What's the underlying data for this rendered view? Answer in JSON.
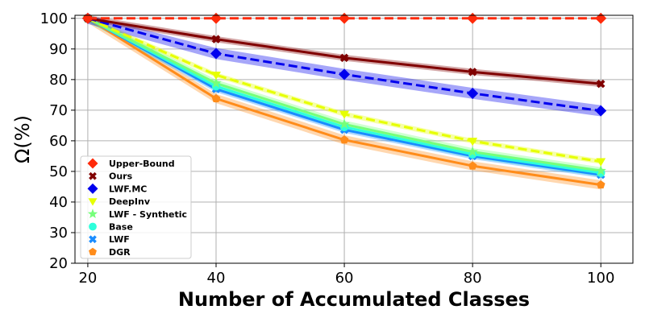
{
  "chart_data": {
    "type": "line",
    "xlabel": "Number of Accumulated Classes",
    "ylabel": "Ω(%)",
    "x": [
      20,
      40,
      60,
      80,
      100
    ],
    "xticks": [
      20,
      40,
      60,
      80,
      100
    ],
    "yticks": [
      20,
      30,
      40,
      50,
      60,
      70,
      80,
      90,
      100
    ],
    "xlim": [
      18,
      105
    ],
    "ylim": [
      20,
      101
    ],
    "grid": true,
    "legend_position": "lower-left",
    "series": [
      {
        "name": "Upper-Bound",
        "values": [
          100,
          100,
          100,
          100,
          100
        ],
        "color": "#ff2a0a",
        "dash": true,
        "marker": "diamond",
        "band": 0
      },
      {
        "name": "Ours",
        "values": [
          100,
          93.2,
          87.1,
          82.5,
          78.6
        ],
        "color": "#800000",
        "dash": false,
        "marker": "x",
        "band": 1.0
      },
      {
        "name": "LWF.MC",
        "values": [
          100,
          88.5,
          81.7,
          75.5,
          69.8
        ],
        "color": "#0000ee",
        "dash": true,
        "marker": "diamond",
        "band": 1.8
      },
      {
        "name": "DeepInv",
        "values": [
          100,
          81.5,
          68.7,
          59.9,
          53.2
        ],
        "color": "#e6ff00",
        "dash": true,
        "marker": "triangle",
        "band": 0.8
      },
      {
        "name": "LWF - Synthetic",
        "values": [
          100,
          78.8,
          65.4,
          56.4,
          50.2
        ],
        "color": "#76ff7a",
        "dash": false,
        "marker": "star",
        "band": 1.2
      },
      {
        "name": "Base",
        "values": [
          100,
          77.8,
          64.5,
          55.6,
          49.5
        ],
        "color": "#2dffdb",
        "dash": false,
        "marker": "circle",
        "band": 1.2
      },
      {
        "name": "LWF",
        "values": [
          100,
          76.9,
          63.6,
          55.0,
          48.9
        ],
        "color": "#1a8cff",
        "dash": false,
        "marker": "x",
        "band": 1.0
      },
      {
        "name": "DGR",
        "values": [
          100,
          73.8,
          60.3,
          51.8,
          45.6
        ],
        "color": "#ff8c1a",
        "dash": false,
        "marker": "pentagon",
        "band": 1.5
      }
    ]
  }
}
